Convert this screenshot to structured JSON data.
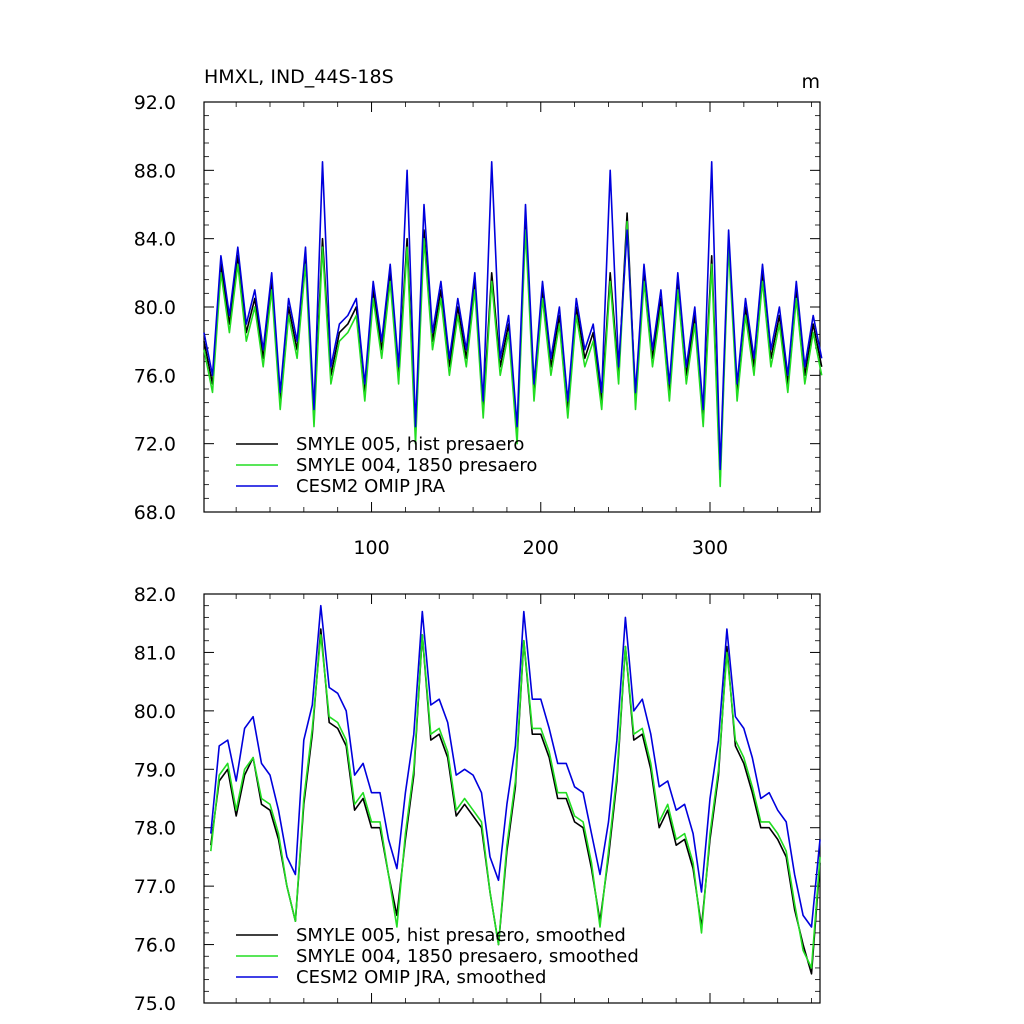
{
  "chart_data": [
    {
      "type": "line",
      "title": "HMXL, IND_44S-18S",
      "units_label": "m",
      "xlim": [
        1,
        365
      ],
      "ylim": [
        68,
        92
      ],
      "yticks": [
        68.0,
        72.0,
        76.0,
        80.0,
        84.0,
        88.0,
        92.0
      ],
      "ytick_labels": [
        "68.0",
        "72.0",
        "76.0",
        "80.0",
        "84.0",
        "88.0",
        "92.0"
      ],
      "xticks": [
        100,
        200,
        300
      ],
      "xtick_labels": [
        "100",
        "200",
        "300"
      ],
      "legend_position": "bottom-left",
      "x": [
        1,
        6,
        11,
        16,
        21,
        26,
        31,
        36,
        41,
        46,
        51,
        56,
        61,
        66,
        71,
        76,
        81,
        86,
        91,
        96,
        101,
        106,
        111,
        116,
        121,
        126,
        131,
        136,
        141,
        146,
        151,
        156,
        161,
        166,
        171,
        176,
        181,
        186,
        191,
        196,
        201,
        206,
        211,
        216,
        221,
        226,
        231,
        236,
        241,
        246,
        251,
        256,
        261,
        266,
        271,
        276,
        281,
        286,
        291,
        296,
        301,
        306,
        311,
        316,
        321,
        326,
        331,
        336,
        341,
        346,
        351,
        356,
        361,
        366
      ],
      "series": [
        {
          "name": "SMYLE 005, hist presaero",
          "color": "#000000",
          "values": [
            78.0,
            75.5,
            82.5,
            79.0,
            83.0,
            78.5,
            80.5,
            77.0,
            81.5,
            74.5,
            80.0,
            77.5,
            83.0,
            73.5,
            84.0,
            76.0,
            78.5,
            79.0,
            80.0,
            75.0,
            81.0,
            77.5,
            82.0,
            76.0,
            84.0,
            72.5,
            84.5,
            78.0,
            81.0,
            76.5,
            80.0,
            77.0,
            81.5,
            74.0,
            82.0,
            76.5,
            79.0,
            72.5,
            85.0,
            75.0,
            81.0,
            76.5,
            79.5,
            74.0,
            80.0,
            77.0,
            78.5,
            74.5,
            82.0,
            76.0,
            85.5,
            74.5,
            82.0,
            77.0,
            80.5,
            75.0,
            81.5,
            76.0,
            79.5,
            73.5,
            83.0,
            70.0,
            84.0,
            75.0,
            80.0,
            76.5,
            82.0,
            77.0,
            79.5,
            75.5,
            81.0,
            76.0,
            79.0,
            76.5
          ]
        },
        {
          "name": "SMYLE 004, 1850 presaero",
          "color": "#22dd22",
          "values": [
            77.5,
            75.0,
            82.0,
            78.5,
            82.5,
            78.0,
            80.0,
            76.5,
            81.0,
            74.0,
            79.5,
            77.0,
            82.5,
            73.0,
            83.5,
            75.5,
            78.0,
            78.5,
            79.5,
            74.5,
            80.5,
            77.0,
            81.5,
            75.5,
            83.5,
            72.0,
            84.0,
            77.5,
            80.5,
            76.0,
            79.5,
            76.5,
            81.0,
            73.5,
            81.5,
            76.0,
            78.5,
            72.0,
            84.5,
            74.5,
            80.5,
            76.0,
            79.0,
            73.5,
            79.5,
            76.5,
            78.0,
            74.0,
            81.5,
            75.5,
            85.0,
            74.0,
            81.5,
            76.5,
            80.0,
            74.5,
            81.0,
            75.5,
            79.0,
            73.0,
            82.5,
            69.5,
            83.5,
            74.5,
            79.5,
            76.0,
            81.5,
            76.5,
            79.0,
            75.0,
            80.5,
            75.5,
            78.5,
            76.0
          ]
        },
        {
          "name": "CESM2 OMIP JRA",
          "color": "#0000dd",
          "values": [
            78.5,
            76.0,
            83.0,
            79.5,
            83.5,
            79.0,
            81.0,
            77.5,
            82.0,
            75.0,
            80.5,
            78.0,
            83.5,
            74.0,
            88.5,
            76.5,
            79.0,
            79.5,
            80.5,
            75.5,
            81.5,
            78.0,
            82.5,
            76.5,
            88.0,
            73.0,
            86.0,
            78.5,
            81.5,
            77.0,
            80.5,
            77.5,
            82.0,
            74.5,
            88.5,
            77.0,
            79.5,
            73.0,
            86.0,
            75.5,
            81.5,
            77.0,
            80.0,
            74.5,
            80.5,
            77.5,
            79.0,
            75.0,
            88.0,
            76.5,
            84.5,
            75.0,
            82.5,
            77.5,
            81.0,
            75.5,
            82.0,
            76.5,
            80.0,
            74.0,
            88.5,
            70.5,
            84.5,
            75.5,
            80.5,
            77.0,
            82.5,
            77.5,
            80.0,
            76.0,
            81.5,
            76.5,
            79.5,
            77.0
          ]
        }
      ],
      "legend": [
        "SMYLE 005, hist presaero",
        "SMYLE 004, 1850 presaero",
        "CESM2 OMIP JRA"
      ]
    },
    {
      "type": "line",
      "title": "",
      "xlim": [
        1,
        365
      ],
      "ylim": [
        75,
        82
      ],
      "yticks": [
        75.0,
        76.0,
        77.0,
        78.0,
        79.0,
        80.0,
        81.0,
        82.0
      ],
      "ytick_labels": [
        "75.0",
        "76.0",
        "77.0",
        "78.0",
        "79.0",
        "80.0",
        "81.0",
        "82.0"
      ],
      "xticks": [
        100,
        200,
        300
      ],
      "legend_position": "bottom-left",
      "x": [
        5,
        10,
        15,
        20,
        25,
        30,
        35,
        40,
        45,
        50,
        55,
        60,
        65,
        70,
        75,
        80,
        85,
        90,
        95,
        100,
        105,
        110,
        115,
        120,
        125,
        130,
        135,
        140,
        145,
        150,
        155,
        160,
        165,
        170,
        175,
        180,
        185,
        190,
        195,
        200,
        205,
        210,
        215,
        220,
        225,
        230,
        235,
        240,
        245,
        250,
        255,
        260,
        265,
        270,
        275,
        280,
        285,
        290,
        295,
        300,
        305,
        310,
        315,
        320,
        325,
        330,
        335,
        340,
        345,
        350,
        355,
        360,
        365
      ],
      "series": [
        {
          "name": "SMYLE 005, hist presaero, smoothed",
          "color": "#000000",
          "values": [
            77.7,
            78.8,
            79.0,
            78.2,
            78.9,
            79.2,
            78.4,
            78.3,
            77.8,
            77.0,
            76.4,
            78.4,
            79.6,
            81.4,
            79.8,
            79.7,
            79.4,
            78.3,
            78.5,
            78.0,
            78.0,
            77.2,
            76.5,
            77.8,
            78.9,
            81.3,
            79.5,
            79.6,
            79.2,
            78.2,
            78.4,
            78.2,
            78.0,
            76.9,
            76.0,
            77.6,
            78.7,
            81.2,
            79.6,
            79.6,
            79.2,
            78.5,
            78.5,
            78.1,
            78.0,
            77.3,
            76.4,
            77.5,
            78.8,
            81.1,
            79.5,
            79.6,
            79.0,
            78.0,
            78.3,
            77.7,
            77.8,
            77.3,
            76.3,
            77.8,
            78.9,
            81.1,
            79.4,
            79.1,
            78.6,
            78.0,
            78.0,
            77.8,
            77.5,
            76.6,
            76.0,
            75.5,
            77.4
          ]
        },
        {
          "name": "SMYLE 004, 1850 presaero, smoothed",
          "color": "#22dd22",
          "values": [
            77.6,
            78.9,
            79.1,
            78.3,
            79.0,
            79.2,
            78.5,
            78.4,
            77.9,
            77.0,
            76.4,
            78.5,
            79.7,
            81.3,
            79.9,
            79.8,
            79.5,
            78.4,
            78.6,
            78.1,
            78.1,
            77.2,
            76.3,
            77.9,
            79.0,
            81.3,
            79.6,
            79.7,
            79.3,
            78.3,
            78.5,
            78.3,
            78.1,
            76.9,
            76.0,
            77.7,
            78.8,
            81.2,
            79.7,
            79.7,
            79.3,
            78.6,
            78.6,
            78.2,
            78.1,
            77.4,
            76.3,
            77.6,
            78.9,
            81.1,
            79.6,
            79.7,
            79.1,
            78.1,
            78.4,
            77.8,
            77.9,
            77.4,
            76.2,
            77.9,
            79.0,
            81.0,
            79.5,
            79.2,
            78.7,
            78.1,
            78.1,
            77.9,
            77.6,
            76.7,
            75.9,
            75.6,
            77.5
          ]
        },
        {
          "name": "CESM2 OMIP JRA, smoothed",
          "color": "#0000dd",
          "values": [
            77.9,
            79.4,
            79.5,
            78.8,
            79.7,
            79.9,
            79.1,
            78.9,
            78.3,
            77.5,
            77.2,
            79.5,
            80.1,
            81.8,
            80.4,
            80.3,
            80.0,
            78.9,
            79.1,
            78.6,
            78.6,
            77.8,
            77.3,
            78.6,
            79.6,
            81.7,
            80.1,
            80.2,
            79.8,
            78.9,
            79.0,
            78.9,
            78.6,
            77.5,
            77.1,
            78.4,
            79.4,
            81.7,
            80.2,
            80.2,
            79.7,
            79.1,
            79.1,
            78.7,
            78.6,
            77.9,
            77.2,
            78.1,
            79.5,
            81.6,
            80.0,
            80.2,
            79.6,
            78.7,
            78.8,
            78.3,
            78.4,
            77.9,
            76.9,
            78.5,
            79.5,
            81.4,
            79.9,
            79.7,
            79.2,
            78.5,
            78.6,
            78.3,
            78.1,
            77.2,
            76.5,
            76.3,
            77.8
          ]
        }
      ],
      "legend": [
        "SMYLE 005, hist presaero, smoothed",
        "SMYLE 004, 1850 presaero, smoothed",
        "CESM2 OMIP JRA, smoothed"
      ]
    }
  ]
}
